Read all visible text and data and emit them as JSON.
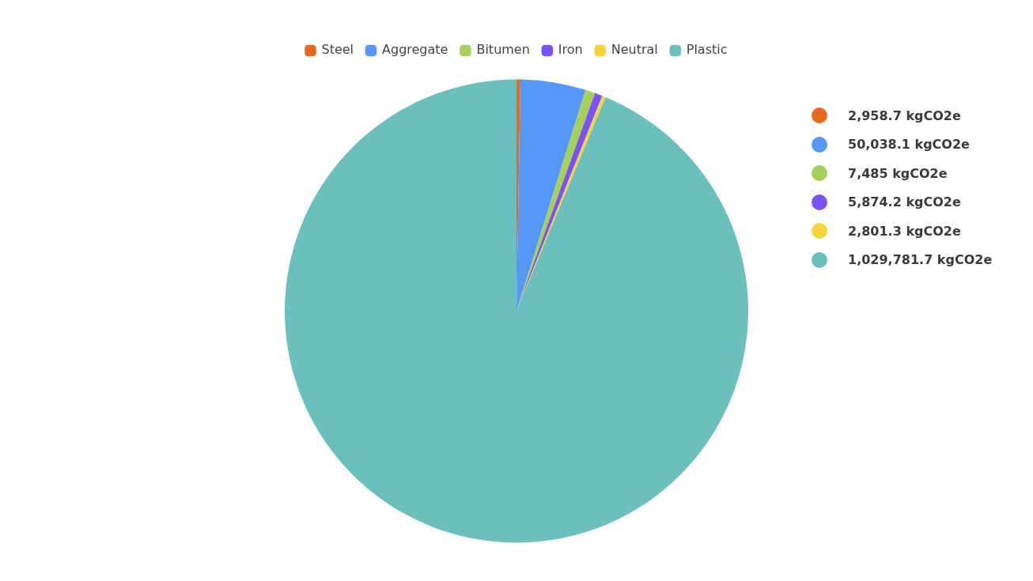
{
  "chart_data": {
    "type": "pie",
    "categories": [
      "Steel",
      "Aggregate",
      "Bitumen",
      "Iron",
      "Neutral",
      "Plastic"
    ],
    "values": [
      0.27,
      4.55,
      0.68,
      0.53,
      0.25,
      93.72
    ],
    "colors": [
      "#e8691e",
      "#5598f7",
      "#a5d05a",
      "#7b52f5",
      "#f5d33a",
      "#6bbfbd"
    ],
    "annotations": [
      "2,958.7 kgCO2e",
      "50,038.1 kgCO2e",
      "7,485 kgCO2e",
      "5,874.2 kgCO2e",
      "2,801.3 kgCO2e",
      "1,029,781.7 kgCO2e"
    ],
    "legend": "top"
  }
}
